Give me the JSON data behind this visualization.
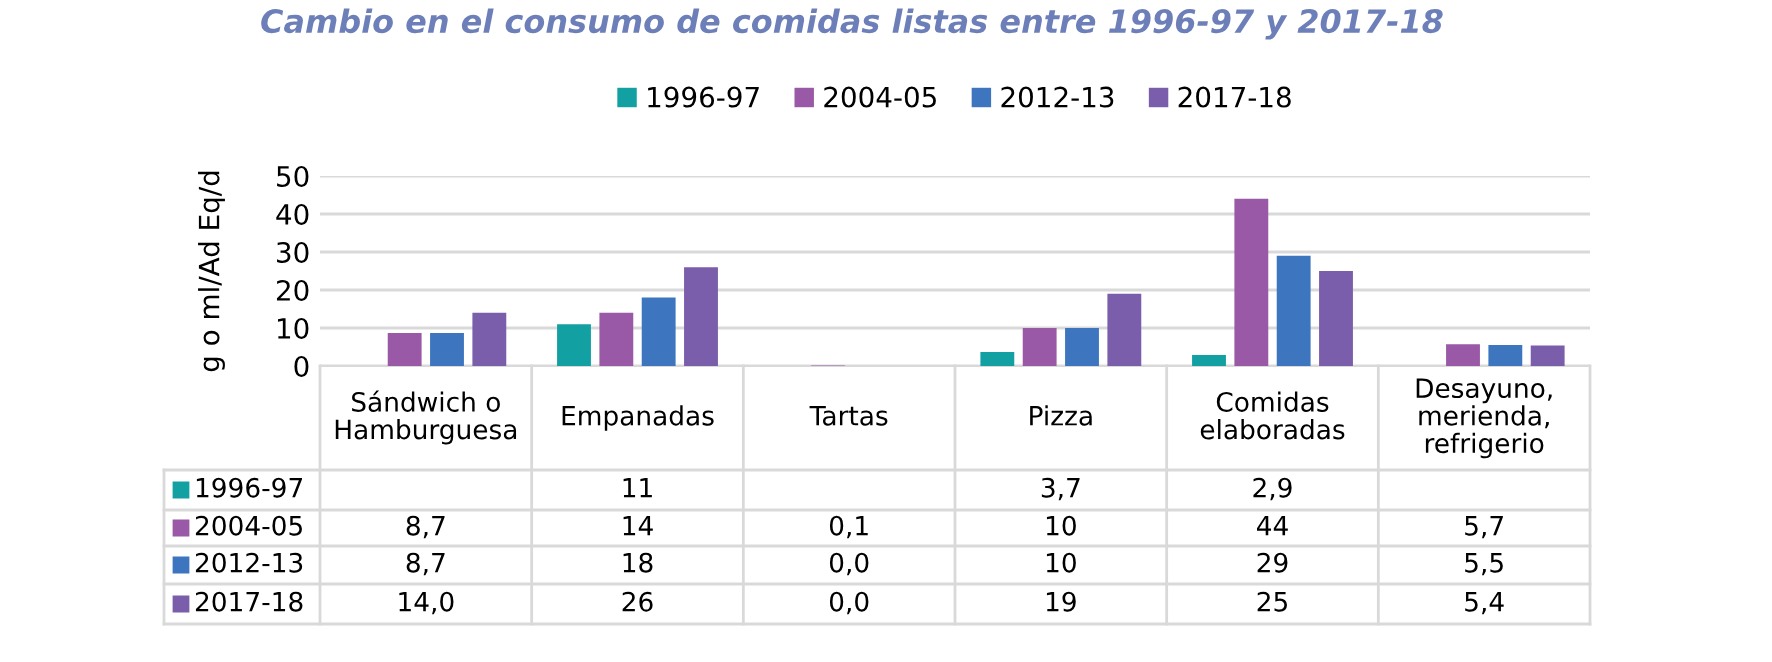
{
  "chart_data": {
    "type": "bar",
    "title": "Cambio en el consumo de comidas listas entre 1996-97 y 2017-18",
    "ylabel": "g o ml/Ad Eq/d",
    "categories": [
      "Sándwich o\nHamburguesa",
      "Empanadas",
      "Tartas",
      "Pizza",
      "Comidas\nelaboradas",
      "Desayuno,\nmerienda,\nrefrigerio"
    ],
    "series": [
      {
        "name": "1996-97",
        "color": "#13a0a2",
        "values": [
          null,
          11,
          null,
          3.7,
          2.9,
          null
        ],
        "value_labels": [
          null,
          "11",
          null,
          "3,7",
          "2,9",
          null
        ]
      },
      {
        "name": "2004-05",
        "color": "#9a59a6",
        "values": [
          8.7,
          14,
          0.1,
          10,
          44,
          5.7
        ],
        "value_labels": [
          "8,7",
          "14",
          "0,1",
          "10",
          "44",
          "5,7"
        ]
      },
      {
        "name": "2012-13",
        "color": "#3d75bf",
        "values": [
          8.7,
          18,
          0.0,
          10,
          29,
          5.5
        ],
        "value_labels": [
          "8,7",
          "18",
          "0,0",
          "10",
          "29",
          "5,5"
        ]
      },
      {
        "name": "2017-18",
        "color": "#7a5dab",
        "values": [
          14.0,
          26,
          0.0,
          19,
          25,
          5.4
        ],
        "value_labels": [
          "14,0",
          "26",
          "0,0",
          "19",
          "25",
          "5,4"
        ]
      }
    ],
    "ylim": [
      0,
      50
    ],
    "yticks": [
      0,
      10,
      20,
      30,
      40,
      50
    ],
    "grid": "y",
    "legend": "top"
  }
}
